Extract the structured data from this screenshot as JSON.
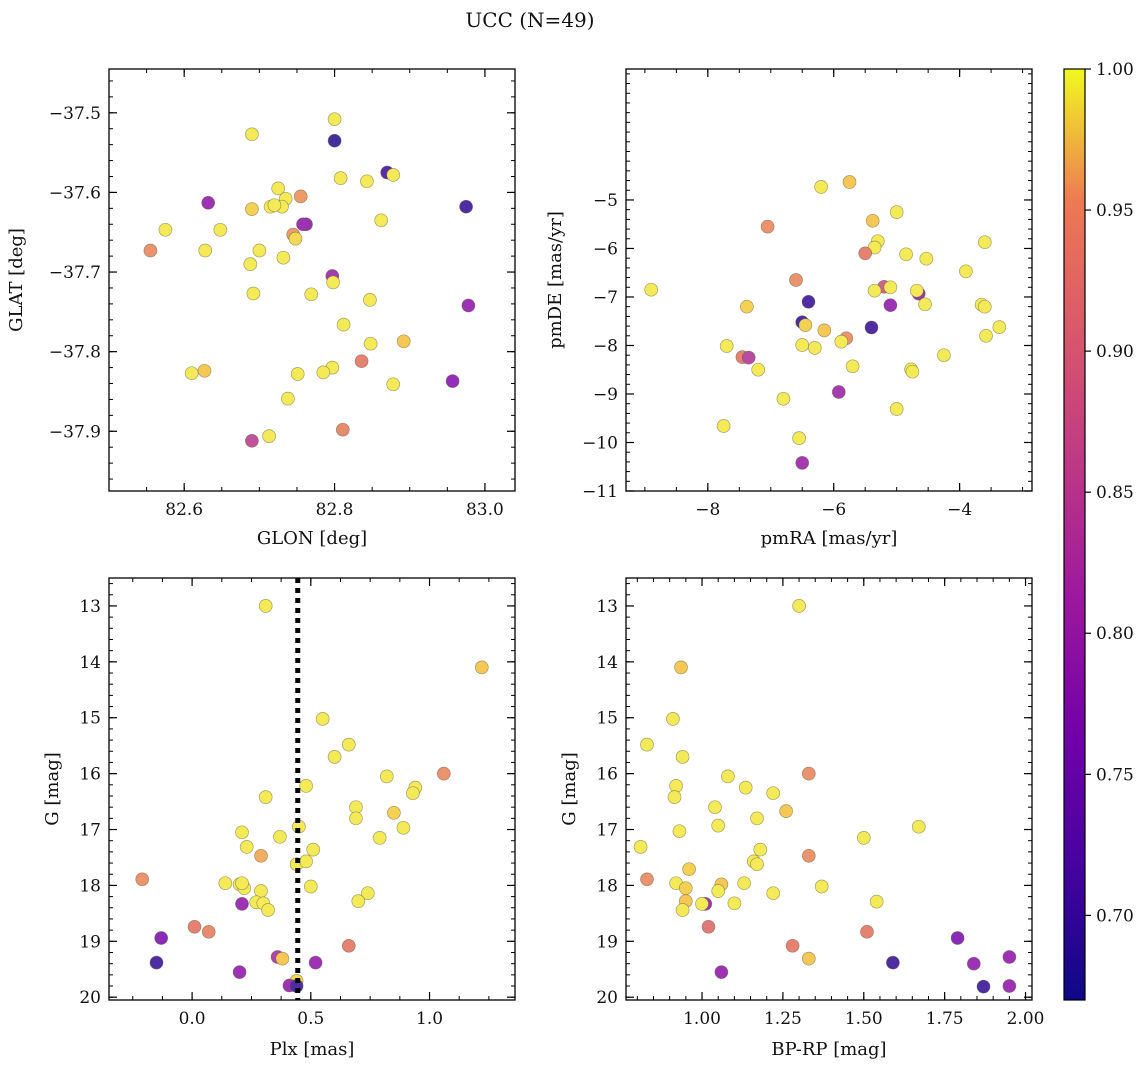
{
  "title": "UCC (N=49)",
  "colorbar": {
    "min": 0.67,
    "max": 1.0,
    "ticks": [
      0.7,
      0.75,
      0.8,
      0.85,
      0.9,
      0.95,
      1.0
    ],
    "tick_labels": [
      "0.70",
      "0.75",
      "0.80",
      "0.85",
      "0.90",
      "0.95",
      "1.00"
    ],
    "colormap": "plasma"
  },
  "chart_data": [
    {
      "type": "scatter",
      "name": "glon-glat",
      "xlabel": "GLON [deg]",
      "ylabel": "GLAT [deg]",
      "xlim": [
        82.5,
        83.04
      ],
      "ylim": [
        -37.975,
        -37.445
      ],
      "y_inverted": false,
      "xticks": [
        82.6,
        82.8,
        83.0
      ],
      "xtick_labels": [
        "82.6",
        "82.8",
        "83.0"
      ],
      "yticks": [
        -37.5,
        -37.6,
        -37.7,
        -37.8,
        -37.9
      ],
      "ytick_labels": [
        "−37.5",
        "−37.6",
        "−37.7",
        "−37.8",
        "−37.9"
      ],
      "x": [
        82.69,
        82.8,
        82.8,
        82.87,
        82.975,
        82.725,
        82.715,
        82.735,
        82.73,
        82.69,
        82.755,
        82.808,
        82.843,
        82.878,
        82.632,
        82.762,
        82.745,
        82.575,
        82.555,
        82.648,
        82.628,
        82.7,
        82.688,
        82.748,
        82.862,
        82.758,
        82.732,
        82.797,
        82.798,
        82.692,
        82.769,
        82.978,
        82.847,
        82.812,
        82.892,
        82.848,
        82.836,
        82.797,
        82.785,
        82.751,
        82.61,
        82.627,
        82.957,
        82.878,
        82.738,
        82.713,
        82.69,
        82.811,
        82.72
      ],
      "y": [
        -37.527,
        -37.508,
        -37.535,
        -37.575,
        -37.618,
        -37.595,
        -37.618,
        -37.608,
        -37.618,
        -37.621,
        -37.605,
        -37.582,
        -37.586,
        -37.578,
        -37.613,
        -37.64,
        -37.653,
        -37.647,
        -37.673,
        -37.647,
        -37.673,
        -37.673,
        -37.69,
        -37.658,
        -37.635,
        -37.64,
        -37.682,
        -37.705,
        -37.713,
        -37.727,
        -37.728,
        -37.742,
        -37.735,
        -37.766,
        -37.787,
        -37.79,
        -37.812,
        -37.82,
        -37.826,
        -37.828,
        -37.827,
        -37.824,
        -37.837,
        -37.841,
        -37.859,
        -37.906,
        -37.912,
        -37.898,
        -37.616
      ],
      "c": [
        0.99,
        0.99,
        0.68,
        0.7,
        0.69,
        0.99,
        0.99,
        0.99,
        0.99,
        0.96,
        0.9,
        0.99,
        0.99,
        0.99,
        0.77,
        0.77,
        0.9,
        0.99,
        0.89,
        0.99,
        0.99,
        0.99,
        0.99,
        0.97,
        0.99,
        0.77,
        0.99,
        0.78,
        0.99,
        0.99,
        0.99,
        0.77,
        0.99,
        0.99,
        0.95,
        0.99,
        0.87,
        0.99,
        0.99,
        0.99,
        0.99,
        0.95,
        0.76,
        0.99,
        0.99,
        0.99,
        0.81,
        0.88,
        0.99
      ]
    },
    {
      "type": "scatter",
      "name": "pmra-pmde",
      "xlabel": "pmRA [mas/yr]",
      "ylabel": "pmDE [mas/yr]",
      "xlim": [
        -9.3,
        -2.85
      ],
      "ylim": [
        -11.0,
        -2.3
      ],
      "y_inverted": false,
      "xticks": [
        -8,
        -6,
        -4
      ],
      "xtick_labels": [
        "−8",
        "−6",
        "−4"
      ],
      "yticks": [
        -5,
        -6,
        -7,
        -8,
        -9,
        -10,
        -11
      ],
      "ytick_labels": [
        "−5",
        "−6",
        "−7",
        "−8",
        "−9",
        "−10",
        "−11"
      ],
      "x": [
        -6.2,
        -5.75,
        -7.05,
        -5.0,
        -5.38,
        -5.3,
        -5.35,
        -3.6,
        -5.5,
        -5.2,
        -4.85,
        -4.53,
        -3.9,
        -8.9,
        -6.6,
        -6.4,
        -5.35,
        -4.65,
        -4.68,
        -5.1,
        -4.55,
        -3.65,
        -3.6,
        -6.5,
        -6.45,
        -7.38,
        -6.15,
        -3.58,
        -3.37,
        -5.4,
        -5.8,
        -5.88,
        -7.45,
        -7.7,
        -6.5,
        -6.3,
        -7.35,
        -5.7,
        -4.77,
        -7.2,
        -4.75,
        -4.25,
        -5.92,
        -6.8,
        -5.0,
        -7.75,
        -6.55,
        -6.5,
        -5.1
      ],
      "y": [
        -4.73,
        -4.63,
        -5.55,
        -5.25,
        -5.43,
        -5.85,
        -5.98,
        -5.87,
        -6.1,
        -6.79,
        -6.12,
        -6.21,
        -6.47,
        -6.85,
        -6.65,
        -7.1,
        -6.87,
        -6.93,
        -6.87,
        -7.17,
        -7.15,
        -7.16,
        -7.2,
        -7.52,
        -7.58,
        -7.2,
        -7.69,
        -7.8,
        -7.62,
        -7.63,
        -7.85,
        -7.92,
        -8.24,
        -8.01,
        -7.99,
        -8.05,
        -8.25,
        -8.43,
        -8.49,
        -8.5,
        -8.54,
        -8.2,
        -8.96,
        -9.1,
        -9.31,
        -9.66,
        -9.91,
        -10.42,
        -6.8
      ],
      "c": [
        0.99,
        0.95,
        0.89,
        0.99,
        0.95,
        0.99,
        0.99,
        0.99,
        0.87,
        0.83,
        0.99,
        0.99,
        0.99,
        0.99,
        0.89,
        0.69,
        0.99,
        0.77,
        0.99,
        0.77,
        0.99,
        0.99,
        0.99,
        0.69,
        0.96,
        0.96,
        0.95,
        0.99,
        0.99,
        0.69,
        0.89,
        0.99,
        0.87,
        0.99,
        0.99,
        0.99,
        0.8,
        0.99,
        0.99,
        0.99,
        0.99,
        0.99,
        0.78,
        0.99,
        0.99,
        0.99,
        0.99,
        0.78,
        0.99
      ]
    },
    {
      "type": "scatter",
      "name": "plx-g",
      "xlabel": "Plx [mas]",
      "ylabel": "G [mag]",
      "xlim": [
        -0.35,
        1.36
      ],
      "ylim": [
        20.05,
        12.5
      ],
      "y_inverted": true,
      "xticks": [
        0.0,
        0.5,
        1.0
      ],
      "xtick_labels": [
        "0.0",
        "0.5",
        "1.0"
      ],
      "yticks": [
        13,
        14,
        15,
        16,
        17,
        18,
        19,
        20
      ],
      "ytick_labels": [
        "13",
        "14",
        "15",
        "16",
        "17",
        "18",
        "19",
        "20"
      ],
      "vline": {
        "x": 0.445,
        "style": "dotted"
      },
      "x": [
        0.31,
        1.22,
        0.55,
        0.66,
        0.6,
        1.06,
        0.82,
        0.94,
        0.31,
        0.48,
        0.85,
        0.69,
        0.93,
        0.89,
        0.69,
        0.21,
        0.37,
        0.79,
        0.23,
        0.51,
        0.29,
        0.45,
        0.44,
        0.48,
        -0.21,
        0.14,
        0.2,
        0.22,
        0.5,
        0.29,
        0.74,
        0.7,
        0.27,
        0.3,
        0.32,
        0.21,
        0.01,
        0.07,
        -0.13,
        0.66,
        0.36,
        0.38,
        -0.15,
        0.44,
        0.52,
        0.2,
        0.41,
        0.44,
        0.21
      ],
      "y": [
        13.0,
        14.1,
        15.02,
        15.48,
        15.7,
        16.0,
        16.05,
        16.25,
        16.42,
        16.22,
        16.7,
        16.6,
        16.35,
        16.97,
        16.8,
        17.05,
        17.13,
        17.15,
        17.31,
        17.36,
        17.47,
        16.95,
        17.62,
        17.57,
        17.89,
        17.96,
        17.98,
        18.05,
        18.02,
        18.1,
        18.14,
        18.28,
        18.3,
        18.32,
        18.44,
        18.33,
        18.74,
        18.83,
        18.94,
        19.08,
        19.28,
        19.31,
        19.38,
        19.71,
        19.38,
        19.55,
        19.79,
        19.8,
        17.96
      ],
      "c": [
        0.99,
        0.95,
        0.99,
        0.99,
        0.99,
        0.89,
        0.99,
        0.99,
        0.99,
        0.99,
        0.96,
        0.99,
        0.99,
        0.99,
        0.99,
        0.99,
        0.99,
        0.99,
        0.99,
        0.99,
        0.92,
        0.99,
        0.99,
        0.99,
        0.89,
        0.99,
        0.99,
        0.99,
        0.99,
        0.99,
        0.99,
        0.99,
        0.99,
        0.99,
        0.99,
        0.77,
        0.87,
        0.88,
        0.75,
        0.87,
        0.79,
        0.95,
        0.69,
        0.97,
        0.77,
        0.77,
        0.77,
        0.69,
        0.99
      ]
    },
    {
      "type": "scatter",
      "name": "bprp-g",
      "xlabel": "BP-RP [mag]",
      "ylabel": "G [mag]",
      "xlim": [
        0.765,
        2.02
      ],
      "ylim": [
        20.05,
        12.5
      ],
      "y_inverted": true,
      "xticks": [
        1.0,
        1.25,
        1.5,
        1.75,
        2.0
      ],
      "xtick_labels": [
        "1.00",
        "1.25",
        "1.50",
        "1.75",
        "2.00"
      ],
      "yticks": [
        13,
        14,
        15,
        16,
        17,
        18,
        19,
        20
      ],
      "ytick_labels": [
        "13",
        "14",
        "15",
        "16",
        "17",
        "18",
        "19",
        "20"
      ],
      "x": [
        1.3,
        0.935,
        0.91,
        0.83,
        0.94,
        1.33,
        1.08,
        1.135,
        1.22,
        0.92,
        1.26,
        0.915,
        1.04,
        1.67,
        1.17,
        0.93,
        1.05,
        1.5,
        0.81,
        1.18,
        1.33,
        1.16,
        1.17,
        0.96,
        0.83,
        0.92,
        1.06,
        0.95,
        1.37,
        1.05,
        1.22,
        1.13,
        0.95,
        1.1,
        0.94,
        1.54,
        1.01,
        1.02,
        1.79,
        1.28,
        1.51,
        1.95,
        1.33,
        1.59,
        1.84,
        1.06,
        1.87,
        1.95,
        1.0
      ],
      "y": [
        13.0,
        14.1,
        15.02,
        15.48,
        15.7,
        16.0,
        16.05,
        16.25,
        16.35,
        16.22,
        16.67,
        16.42,
        16.6,
        16.95,
        16.8,
        17.03,
        16.93,
        17.15,
        17.31,
        17.36,
        17.47,
        17.57,
        17.62,
        17.71,
        17.89,
        17.96,
        17.98,
        18.05,
        18.02,
        18.1,
        18.14,
        17.96,
        18.28,
        18.32,
        18.44,
        18.29,
        18.33,
        18.74,
        18.94,
        19.08,
        18.83,
        19.28,
        19.31,
        19.38,
        19.4,
        19.55,
        19.81,
        19.8,
        18.33
      ],
      "c": [
        0.99,
        0.95,
        0.99,
        0.99,
        0.99,
        0.89,
        0.99,
        0.99,
        0.99,
        0.99,
        0.95,
        0.99,
        0.99,
        0.99,
        0.99,
        0.99,
        0.99,
        0.99,
        0.99,
        0.99,
        0.89,
        0.99,
        0.99,
        0.96,
        0.89,
        0.99,
        0.95,
        0.96,
        0.99,
        0.99,
        0.99,
        0.99,
        0.95,
        0.99,
        0.99,
        0.99,
        0.77,
        0.86,
        0.75,
        0.87,
        0.87,
        0.77,
        0.95,
        0.69,
        0.77,
        0.77,
        0.69,
        0.77,
        0.99
      ]
    }
  ]
}
